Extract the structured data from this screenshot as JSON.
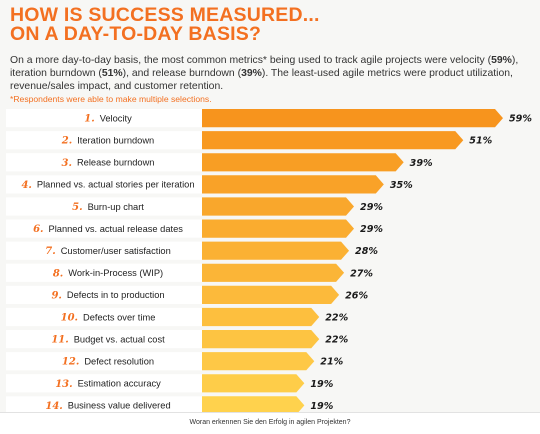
{
  "header": {
    "title_line1": "HOW IS SUCCESS MEASURED...",
    "title_line2": "ON A DAY-TO-DAY BASIS?"
  },
  "intro": {
    "part1": "On a more day-to-day basis, the most common metrics* being used to track agile projects were velocity (",
    "velocity": "59%",
    "part2": "), iteration burndown (",
    "iteration": "51%",
    "part3": "), and release burndown (",
    "release": "39%",
    "part4": "). The least-used agile metrics were product utilization, revenue/sales impact, and customer retention."
  },
  "note": "*Respondents were able to make multiple selections.",
  "footer": "Woran erkennen Sie den Erfolg in agilen Projekten?",
  "colors": {
    "accent": "#f37021",
    "bar_dark": "#f7941d",
    "bar_light": "#ffd24d",
    "label_panel": "#ffffff"
  },
  "chart_data": {
    "type": "bar",
    "orientation": "horizontal",
    "numbers": [
      "1.",
      "2.",
      "3.",
      "4.",
      "5.",
      "6.",
      "7.",
      "8.",
      "9.",
      "10.",
      "11.",
      "12.",
      "13.",
      "14."
    ],
    "categories": [
      "Velocity",
      "Iteration burndown",
      "Release burndown",
      "Planned vs. actual stories per iteration",
      "Burn-up chart",
      "Planned vs. actual release dates",
      "Customer/user satisfaction",
      "Work-in-Process (WIP)",
      "Defects in to production",
      "Defects over time",
      "Budget vs. actual cost",
      "Defect resolution",
      "Estimation accuracy",
      "Business value delivered"
    ],
    "values": [
      59,
      51,
      39,
      35,
      29,
      29,
      28,
      27,
      26,
      22,
      22,
      21,
      19,
      19
    ],
    "value_labels": [
      "59%",
      "51%",
      "39%",
      "35%",
      "29%",
      "29%",
      "28%",
      "27%",
      "26%",
      "22%",
      "22%",
      "21%",
      "19%",
      "19%"
    ],
    "xlim": [
      0,
      60
    ]
  }
}
